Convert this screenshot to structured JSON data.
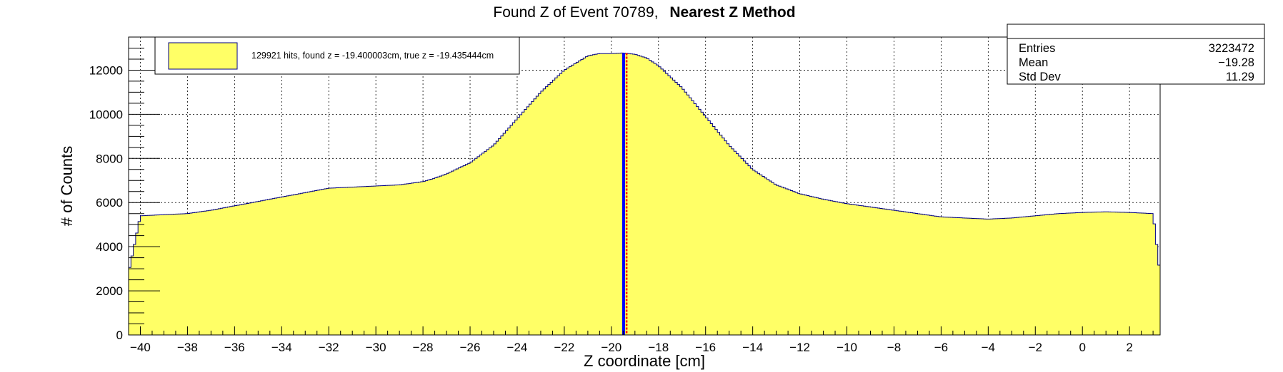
{
  "chart_data": {
    "type": "area",
    "title_main": "Found Z of Event 70789,",
    "title_bold": "Nearest Z Method",
    "xlabel": "Z coordinate [cm]",
    "ylabel": "# of Counts",
    "xlim": [
      -40.5,
      3.3
    ],
    "ylim": [
      0,
      13500
    ],
    "x_ticks": [
      -40,
      -38,
      -36,
      -34,
      -32,
      -30,
      -28,
      -26,
      -24,
      -22,
      -20,
      -18,
      -16,
      -14,
      -12,
      -10,
      -8,
      -6,
      -4,
      -2,
      0,
      2
    ],
    "y_ticks": [
      0,
      2000,
      4000,
      6000,
      8000,
      10000,
      12000
    ],
    "x_tick_labels": [
      "−40",
      "−38",
      "−36",
      "−34",
      "−32",
      "−30",
      "−28",
      "−26",
      "−24",
      "−22",
      "−20",
      "−18",
      "−16",
      "−14",
      "−12",
      "−10",
      "−8",
      "−6",
      "−4",
      "−2",
      "0",
      "2"
    ],
    "y_tick_labels": [
      "0",
      "2000",
      "4000",
      "6000",
      "8000",
      "10000",
      "12000"
    ],
    "grid": true,
    "histogram": {
      "name": "129921 hits, found z = -19.400003cm, true z = -19.435444cm",
      "fill_color": "#ffff66",
      "line_color": "#000080",
      "x": [
        -40.5,
        -40.0,
        -39.0,
        -38.0,
        -37.0,
        -36.0,
        -35.0,
        -34.0,
        -33.0,
        -32.0,
        -31.0,
        -30.0,
        -29.0,
        -28.0,
        -27.5,
        -27.0,
        -26.0,
        -25.0,
        -24.0,
        -23.0,
        -22.0,
        -21.0,
        -20.5,
        -20.0,
        -19.5,
        -19.0,
        -18.5,
        -18.0,
        -17.0,
        -16.0,
        -15.0,
        -14.0,
        -13.0,
        -12.0,
        -11.0,
        -10.0,
        -9.0,
        -8.0,
        -7.0,
        -6.0,
        -5.0,
        -4.0,
        -3.0,
        -2.0,
        -1.0,
        0.0,
        1.0,
        2.0,
        3.0,
        3.3
      ],
      "y": [
        2800,
        5400,
        5450,
        5500,
        5650,
        5850,
        6050,
        6250,
        6450,
        6650,
        6700,
        6750,
        6800,
        6950,
        7100,
        7300,
        7800,
        8600,
        9800,
        11000,
        12000,
        12650,
        12750,
        12750,
        12780,
        12720,
        12550,
        12200,
        11200,
        9900,
        8600,
        7500,
        6800,
        6400,
        6150,
        5950,
        5800,
        5650,
        5500,
        5350,
        5300,
        5250,
        5300,
        5400,
        5500,
        5550,
        5580,
        5550,
        5500,
        2700
      ]
    },
    "found_z": -19.400003,
    "true_z": -19.435444,
    "found_z_color": "#ff0000",
    "true_z_color": "#0000ff",
    "legend": {
      "entry": "129921 hits, found z = -19.400003cm, true z = -19.435444cm",
      "placement": "top-left"
    },
    "stats": {
      "placement": "top-right",
      "rows": [
        {
          "label": "Entries",
          "value": "3223472"
        },
        {
          "label": "Mean",
          "value": "−19.28"
        },
        {
          "label": "Std Dev",
          "value": "11.29"
        }
      ]
    }
  }
}
